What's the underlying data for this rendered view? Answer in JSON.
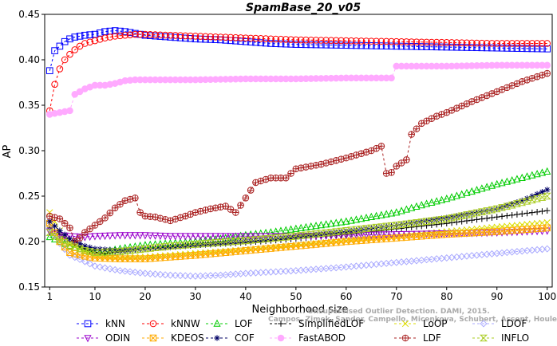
{
  "chart_data": {
    "type": "line",
    "title": "SpamBase_20_v05",
    "xlabel": "Neighborhood size",
    "ylabel": "AP",
    "xlim": [
      0,
      101
    ],
    "ylim": [
      0.15,
      0.45
    ],
    "xticks": [
      1,
      10,
      20,
      30,
      40,
      50,
      60,
      70,
      80,
      90,
      100
    ],
    "yticks": [
      0.15,
      0.2,
      0.25,
      0.3,
      0.35,
      0.4,
      0.45
    ],
    "grid": false,
    "legend_position": "bottom",
    "watermark": [
      "... Unsupervised Outlier Detection. DAMI, 2015.",
      "Campos, Zimek, Sander, Campello, Micenkova, Schubert, Assent, Houle"
    ],
    "series": [
      {
        "name": "kNN",
        "color": "#0000ff",
        "marker": "square",
        "dash": "3,3",
        "points": [
          [
            1,
            0.388
          ],
          [
            2,
            0.41
          ],
          [
            3,
            0.415
          ],
          [
            4,
            0.42
          ],
          [
            5,
            0.423
          ],
          [
            6,
            0.425
          ],
          [
            7,
            0.426
          ],
          [
            8,
            0.427
          ],
          [
            10,
            0.428
          ],
          [
            12,
            0.431
          ],
          [
            14,
            0.432
          ],
          [
            16,
            0.431
          ],
          [
            18,
            0.429
          ],
          [
            20,
            0.427
          ],
          [
            25,
            0.425
          ],
          [
            30,
            0.423
          ],
          [
            35,
            0.422
          ],
          [
            40,
            0.42
          ],
          [
            45,
            0.418
          ],
          [
            50,
            0.417
          ],
          [
            60,
            0.416
          ],
          [
            70,
            0.415
          ],
          [
            80,
            0.414
          ],
          [
            90,
            0.413
          ],
          [
            100,
            0.412
          ]
        ]
      },
      {
        "name": "kNNW",
        "color": "#ff0000",
        "marker": "circle",
        "dash": "3,3",
        "points": [
          [
            1,
            0.344
          ],
          [
            2,
            0.373
          ],
          [
            3,
            0.39
          ],
          [
            4,
            0.4
          ],
          [
            5,
            0.406
          ],
          [
            6,
            0.411
          ],
          [
            7,
            0.415
          ],
          [
            8,
            0.418
          ],
          [
            10,
            0.421
          ],
          [
            12,
            0.424
          ],
          [
            14,
            0.426
          ],
          [
            16,
            0.427
          ],
          [
            18,
            0.428
          ],
          [
            20,
            0.428
          ],
          [
            25,
            0.427
          ],
          [
            30,
            0.426
          ],
          [
            35,
            0.425
          ],
          [
            40,
            0.424
          ],
          [
            50,
            0.422
          ],
          [
            60,
            0.421
          ],
          [
            70,
            0.42
          ],
          [
            80,
            0.419
          ],
          [
            90,
            0.418
          ],
          [
            100,
            0.418
          ]
        ]
      },
      {
        "name": "LOF",
        "color": "#00cc00",
        "marker": "triangle-up",
        "dash": "3,3",
        "points": [
          [
            1,
            0.205
          ],
          [
            3,
            0.2
          ],
          [
            5,
            0.195
          ],
          [
            8,
            0.19
          ],
          [
            10,
            0.188
          ],
          [
            12,
            0.189
          ],
          [
            15,
            0.192
          ],
          [
            20,
            0.196
          ],
          [
            25,
            0.198
          ],
          [
            30,
            0.2
          ],
          [
            35,
            0.203
          ],
          [
            40,
            0.207
          ],
          [
            45,
            0.21
          ],
          [
            50,
            0.214
          ],
          [
            55,
            0.218
          ],
          [
            60,
            0.222
          ],
          [
            65,
            0.227
          ],
          [
            70,
            0.232
          ],
          [
            75,
            0.24
          ],
          [
            80,
            0.247
          ],
          [
            85,
            0.255
          ],
          [
            90,
            0.263
          ],
          [
            95,
            0.27
          ],
          [
            100,
            0.277
          ]
        ]
      },
      {
        "name": "SimplifiedLOF",
        "color": "#000000",
        "marker": "plus",
        "dash": "3,3",
        "points": [
          [
            1,
            0.215
          ],
          [
            3,
            0.208
          ],
          [
            5,
            0.2
          ],
          [
            8,
            0.192
          ],
          [
            10,
            0.188
          ],
          [
            12,
            0.187
          ],
          [
            15,
            0.189
          ],
          [
            20,
            0.192
          ],
          [
            25,
            0.194
          ],
          [
            30,
            0.196
          ],
          [
            40,
            0.199
          ],
          [
            50,
            0.203
          ],
          [
            60,
            0.208
          ],
          [
            70,
            0.214
          ],
          [
            80,
            0.22
          ],
          [
            90,
            0.227
          ],
          [
            100,
            0.234
          ]
        ]
      },
      {
        "name": "LoOP",
        "color": "#dddd00",
        "marker": "x",
        "dash": "3,3",
        "points": [
          [
            1,
            0.232
          ],
          [
            3,
            0.212
          ],
          [
            5,
            0.198
          ],
          [
            8,
            0.188
          ],
          [
            10,
            0.184
          ],
          [
            15,
            0.182
          ],
          [
            20,
            0.183
          ],
          [
            25,
            0.185
          ],
          [
            30,
            0.187
          ],
          [
            40,
            0.191
          ],
          [
            50,
            0.196
          ],
          [
            60,
            0.201
          ],
          [
            70,
            0.206
          ],
          [
            80,
            0.211
          ],
          [
            90,
            0.216
          ],
          [
            100,
            0.221
          ]
        ]
      },
      {
        "name": "LDOF",
        "color": "#aaaaff",
        "marker": "diamond",
        "dash": "3,3",
        "points": [
          [
            1,
            0.215
          ],
          [
            3,
            0.198
          ],
          [
            5,
            0.185
          ],
          [
            8,
            0.178
          ],
          [
            10,
            0.173
          ],
          [
            15,
            0.168
          ],
          [
            20,
            0.165
          ],
          [
            25,
            0.163
          ],
          [
            30,
            0.162
          ],
          [
            35,
            0.163
          ],
          [
            40,
            0.165
          ],
          [
            50,
            0.168
          ],
          [
            60,
            0.172
          ],
          [
            70,
            0.177
          ],
          [
            80,
            0.182
          ],
          [
            90,
            0.187
          ],
          [
            100,
            0.192
          ]
        ]
      },
      {
        "name": "ODIN",
        "color": "#9900cc",
        "marker": "triangle-down",
        "dash": "3,3",
        "points": [
          [
            1,
            0.211
          ],
          [
            3,
            0.207
          ],
          [
            5,
            0.206
          ],
          [
            8,
            0.205
          ],
          [
            10,
            0.206
          ],
          [
            15,
            0.207
          ],
          [
            20,
            0.207
          ],
          [
            25,
            0.206
          ],
          [
            30,
            0.206
          ],
          [
            40,
            0.206
          ],
          [
            50,
            0.206
          ],
          [
            60,
            0.207
          ],
          [
            70,
            0.208
          ],
          [
            80,
            0.209
          ],
          [
            90,
            0.21
          ],
          [
            100,
            0.212
          ]
        ]
      },
      {
        "name": "KDEOS",
        "color": "#ffaa00",
        "marker": "square-x",
        "dash": "3,3",
        "points": [
          [
            1,
            0.22
          ],
          [
            3,
            0.2
          ],
          [
            5,
            0.188
          ],
          [
            8,
            0.184
          ],
          [
            10,
            0.182
          ],
          [
            15,
            0.181
          ],
          [
            20,
            0.181
          ],
          [
            25,
            0.183
          ],
          [
            30,
            0.185
          ],
          [
            40,
            0.19
          ],
          [
            50,
            0.195
          ],
          [
            60,
            0.2
          ],
          [
            70,
            0.204
          ],
          [
            80,
            0.208
          ],
          [
            90,
            0.211
          ],
          [
            100,
            0.215
          ]
        ]
      },
      {
        "name": "COF",
        "color": "#000066",
        "marker": "asterisk",
        "dash": "3,3",
        "points": [
          [
            1,
            0.222
          ],
          [
            3,
            0.212
          ],
          [
            5,
            0.203
          ],
          [
            8,
            0.195
          ],
          [
            10,
            0.192
          ],
          [
            15,
            0.19
          ],
          [
            20,
            0.192
          ],
          [
            25,
            0.194
          ],
          [
            30,
            0.196
          ],
          [
            40,
            0.2
          ],
          [
            50,
            0.205
          ],
          [
            60,
            0.211
          ],
          [
            70,
            0.218
          ],
          [
            80,
            0.226
          ],
          [
            90,
            0.236
          ],
          [
            95,
            0.245
          ],
          [
            100,
            0.257
          ]
        ]
      },
      {
        "name": "FastABOD",
        "color": "#ffaaff",
        "marker": "circle-filled",
        "dash": "3,3",
        "points": [
          [
            1,
            0.34
          ],
          [
            3,
            0.342
          ],
          [
            5,
            0.344
          ],
          [
            6,
            0.362
          ],
          [
            8,
            0.368
          ],
          [
            10,
            0.372
          ],
          [
            12,
            0.372
          ],
          [
            14,
            0.374
          ],
          [
            16,
            0.377
          ],
          [
            18,
            0.378
          ],
          [
            20,
            0.378
          ],
          [
            30,
            0.378
          ],
          [
            40,
            0.379
          ],
          [
            50,
            0.379
          ],
          [
            60,
            0.38
          ],
          [
            69,
            0.38
          ],
          [
            70,
            0.393
          ],
          [
            80,
            0.393
          ],
          [
            90,
            0.394
          ],
          [
            100,
            0.394
          ]
        ]
      },
      {
        "name": "LDF",
        "color": "#aa2222",
        "marker": "circle-plus",
        "dash": "3,3",
        "points": [
          [
            1,
            0.228
          ],
          [
            3,
            0.225
          ],
          [
            5,
            0.215
          ],
          [
            6,
            0.2
          ],
          [
            7,
            0.204
          ],
          [
            8,
            0.21
          ],
          [
            10,
            0.218
          ],
          [
            12,
            0.226
          ],
          [
            14,
            0.237
          ],
          [
            16,
            0.245
          ],
          [
            18,
            0.248
          ],
          [
            19,
            0.232
          ],
          [
            20,
            0.228
          ],
          [
            22,
            0.227
          ],
          [
            25,
            0.223
          ],
          [
            28,
            0.228
          ],
          [
            30,
            0.232
          ],
          [
            33,
            0.236
          ],
          [
            36,
            0.239
          ],
          [
            38,
            0.232
          ],
          [
            40,
            0.248
          ],
          [
            42,
            0.265
          ],
          [
            45,
            0.27
          ],
          [
            48,
            0.27
          ],
          [
            50,
            0.28
          ],
          [
            55,
            0.285
          ],
          [
            60,
            0.292
          ],
          [
            65,
            0.3
          ],
          [
            67,
            0.305
          ],
          [
            68,
            0.275
          ],
          [
            69,
            0.276
          ],
          [
            70,
            0.283
          ],
          [
            72,
            0.29
          ],
          [
            73,
            0.318
          ],
          [
            75,
            0.33
          ],
          [
            78,
            0.338
          ],
          [
            80,
            0.342
          ],
          [
            85,
            0.354
          ],
          [
            90,
            0.365
          ],
          [
            95,
            0.376
          ],
          [
            100,
            0.385
          ]
        ]
      },
      {
        "name": "INFLO",
        "color": "#aacc22",
        "marker": "hourglass",
        "dash": "3,3",
        "points": [
          [
            1,
            0.21
          ],
          [
            3,
            0.202
          ],
          [
            5,
            0.196
          ],
          [
            8,
            0.19
          ],
          [
            10,
            0.188
          ],
          [
            15,
            0.189
          ],
          [
            20,
            0.192
          ],
          [
            25,
            0.195
          ],
          [
            30,
            0.197
          ],
          [
            40,
            0.201
          ],
          [
            50,
            0.206
          ],
          [
            60,
            0.212
          ],
          [
            70,
            0.218
          ],
          [
            80,
            0.225
          ],
          [
            90,
            0.236
          ],
          [
            95,
            0.243
          ],
          [
            100,
            0.25
          ]
        ]
      }
    ]
  }
}
